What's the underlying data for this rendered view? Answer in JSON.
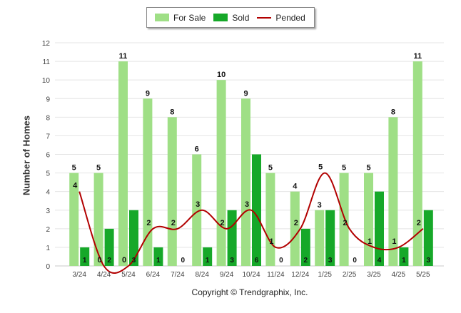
{
  "legend": {
    "items": [
      {
        "label": "For Sale",
        "color": "#9fdf86",
        "kind": "bar"
      },
      {
        "label": "Sold",
        "color": "#16a829",
        "kind": "bar"
      },
      {
        "label": "Pended",
        "color": "#b20000",
        "kind": "line"
      }
    ],
    "placement": "top-center"
  },
  "footer": {
    "copyright": "Copyright © Trendgraphix, Inc."
  },
  "chart_data": {
    "type": "bar",
    "title": "",
    "xlabel": "",
    "ylabel": "Number of Homes",
    "ylim": [
      0,
      12
    ],
    "yticks": [
      0,
      1,
      2,
      3,
      4,
      5,
      6,
      7,
      8,
      9,
      10,
      11,
      12
    ],
    "grid": true,
    "categories": [
      "3/24",
      "4/24",
      "5/24",
      "6/24",
      "7/24",
      "8/24",
      "9/24",
      "10/24",
      "11/24",
      "12/24",
      "1/25",
      "2/25",
      "3/25",
      "4/25",
      "5/25"
    ],
    "series": [
      {
        "name": "For Sale",
        "type": "bar",
        "color": "#9fdf86",
        "values": [
          5,
          5,
          11,
          9,
          8,
          6,
          10,
          9,
          5,
          4,
          3,
          5,
          5,
          8,
          11
        ]
      },
      {
        "name": "Sold",
        "type": "bar",
        "color": "#16a829",
        "values": [
          1,
          2,
          3,
          1,
          0,
          1,
          3,
          6,
          0,
          2,
          3,
          0,
          4,
          1,
          3
        ]
      },
      {
        "name": "Pended",
        "type": "line",
        "color": "#b20000",
        "values": [
          4,
          0,
          0,
          2,
          2,
          3,
          2,
          3,
          1,
          2,
          5,
          2,
          1,
          1,
          2
        ]
      }
    ]
  }
}
